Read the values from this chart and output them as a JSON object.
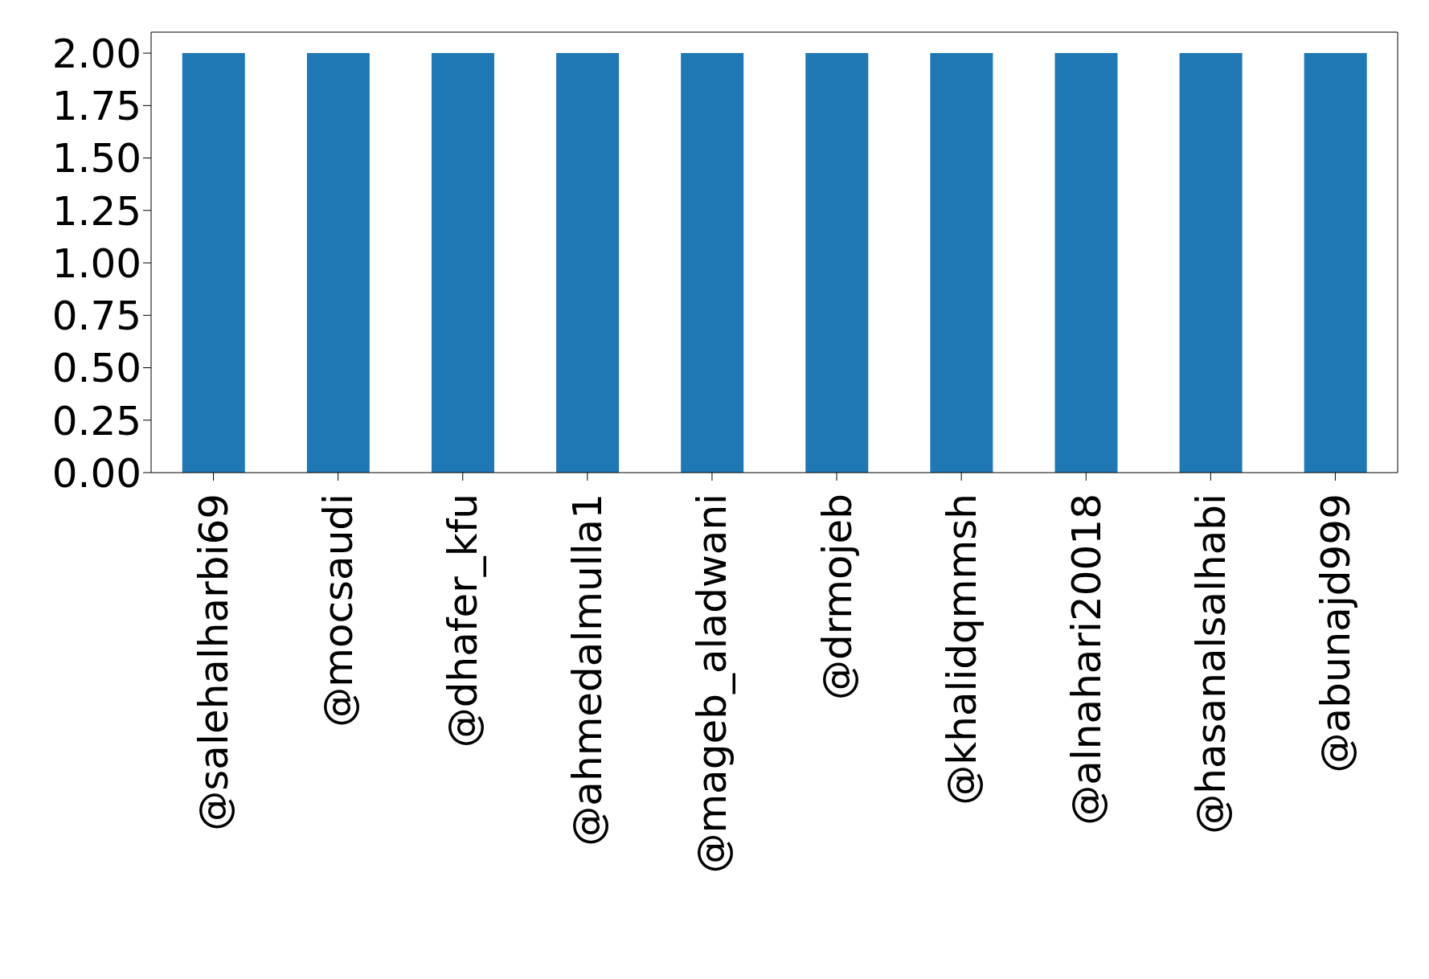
{
  "chart_data": {
    "type": "bar",
    "categories": [
      "@salehalharbi69",
      "@mocsaudi",
      "@dhafer_kfu",
      "@ahmedalmulla1",
      "@mageb_aladwani",
      "@drmojeb",
      "@khalidqmmsh",
      "@alnahari20018",
      "@hasanalsalhabi",
      "@abunajd999"
    ],
    "values": [
      2,
      2,
      2,
      2,
      2,
      2,
      2,
      2,
      2,
      2
    ],
    "color": "#1f77b4",
    "ylim": [
      0,
      2.1
    ],
    "yticks": [
      {
        "value": 0,
        "label": "0.00"
      },
      {
        "value": 0.25,
        "label": "0.25"
      },
      {
        "value": 0.5,
        "label": "0.50"
      },
      {
        "value": 0.75,
        "label": "0.75"
      },
      {
        "value": 1,
        "label": "1.00"
      },
      {
        "value": 1.25,
        "label": "1.25"
      },
      {
        "value": 1.5,
        "label": "1.50"
      },
      {
        "value": 1.75,
        "label": "1.75"
      },
      {
        "value": 2,
        "label": "2.00"
      }
    ],
    "grid": false
  }
}
